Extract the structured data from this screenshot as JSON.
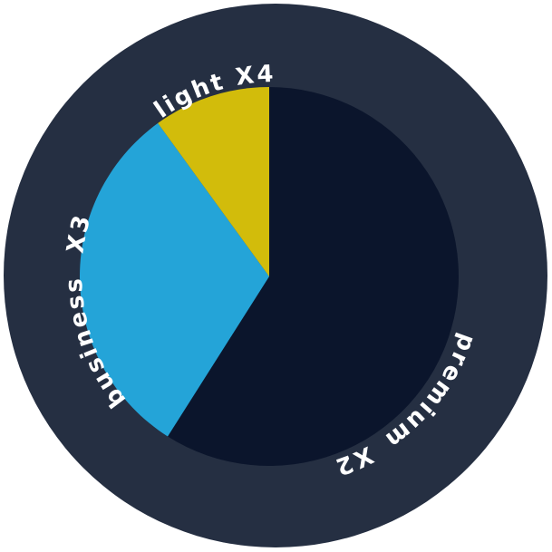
{
  "chart_data": {
    "type": "pie",
    "title": "",
    "slices": [
      {
        "label": "premium",
        "multiplier": "X2",
        "value": 59,
        "color": "#0b152c"
      },
      {
        "label": "business",
        "multiplier": "X3",
        "value": 31,
        "color": "#24a4d8"
      },
      {
        "label": "light",
        "multiplier": "X4",
        "value": 10,
        "color": "#d2bc0b"
      }
    ],
    "colors": {
      "outer_ring": "#252f42",
      "label_text": "#ffffff"
    }
  }
}
